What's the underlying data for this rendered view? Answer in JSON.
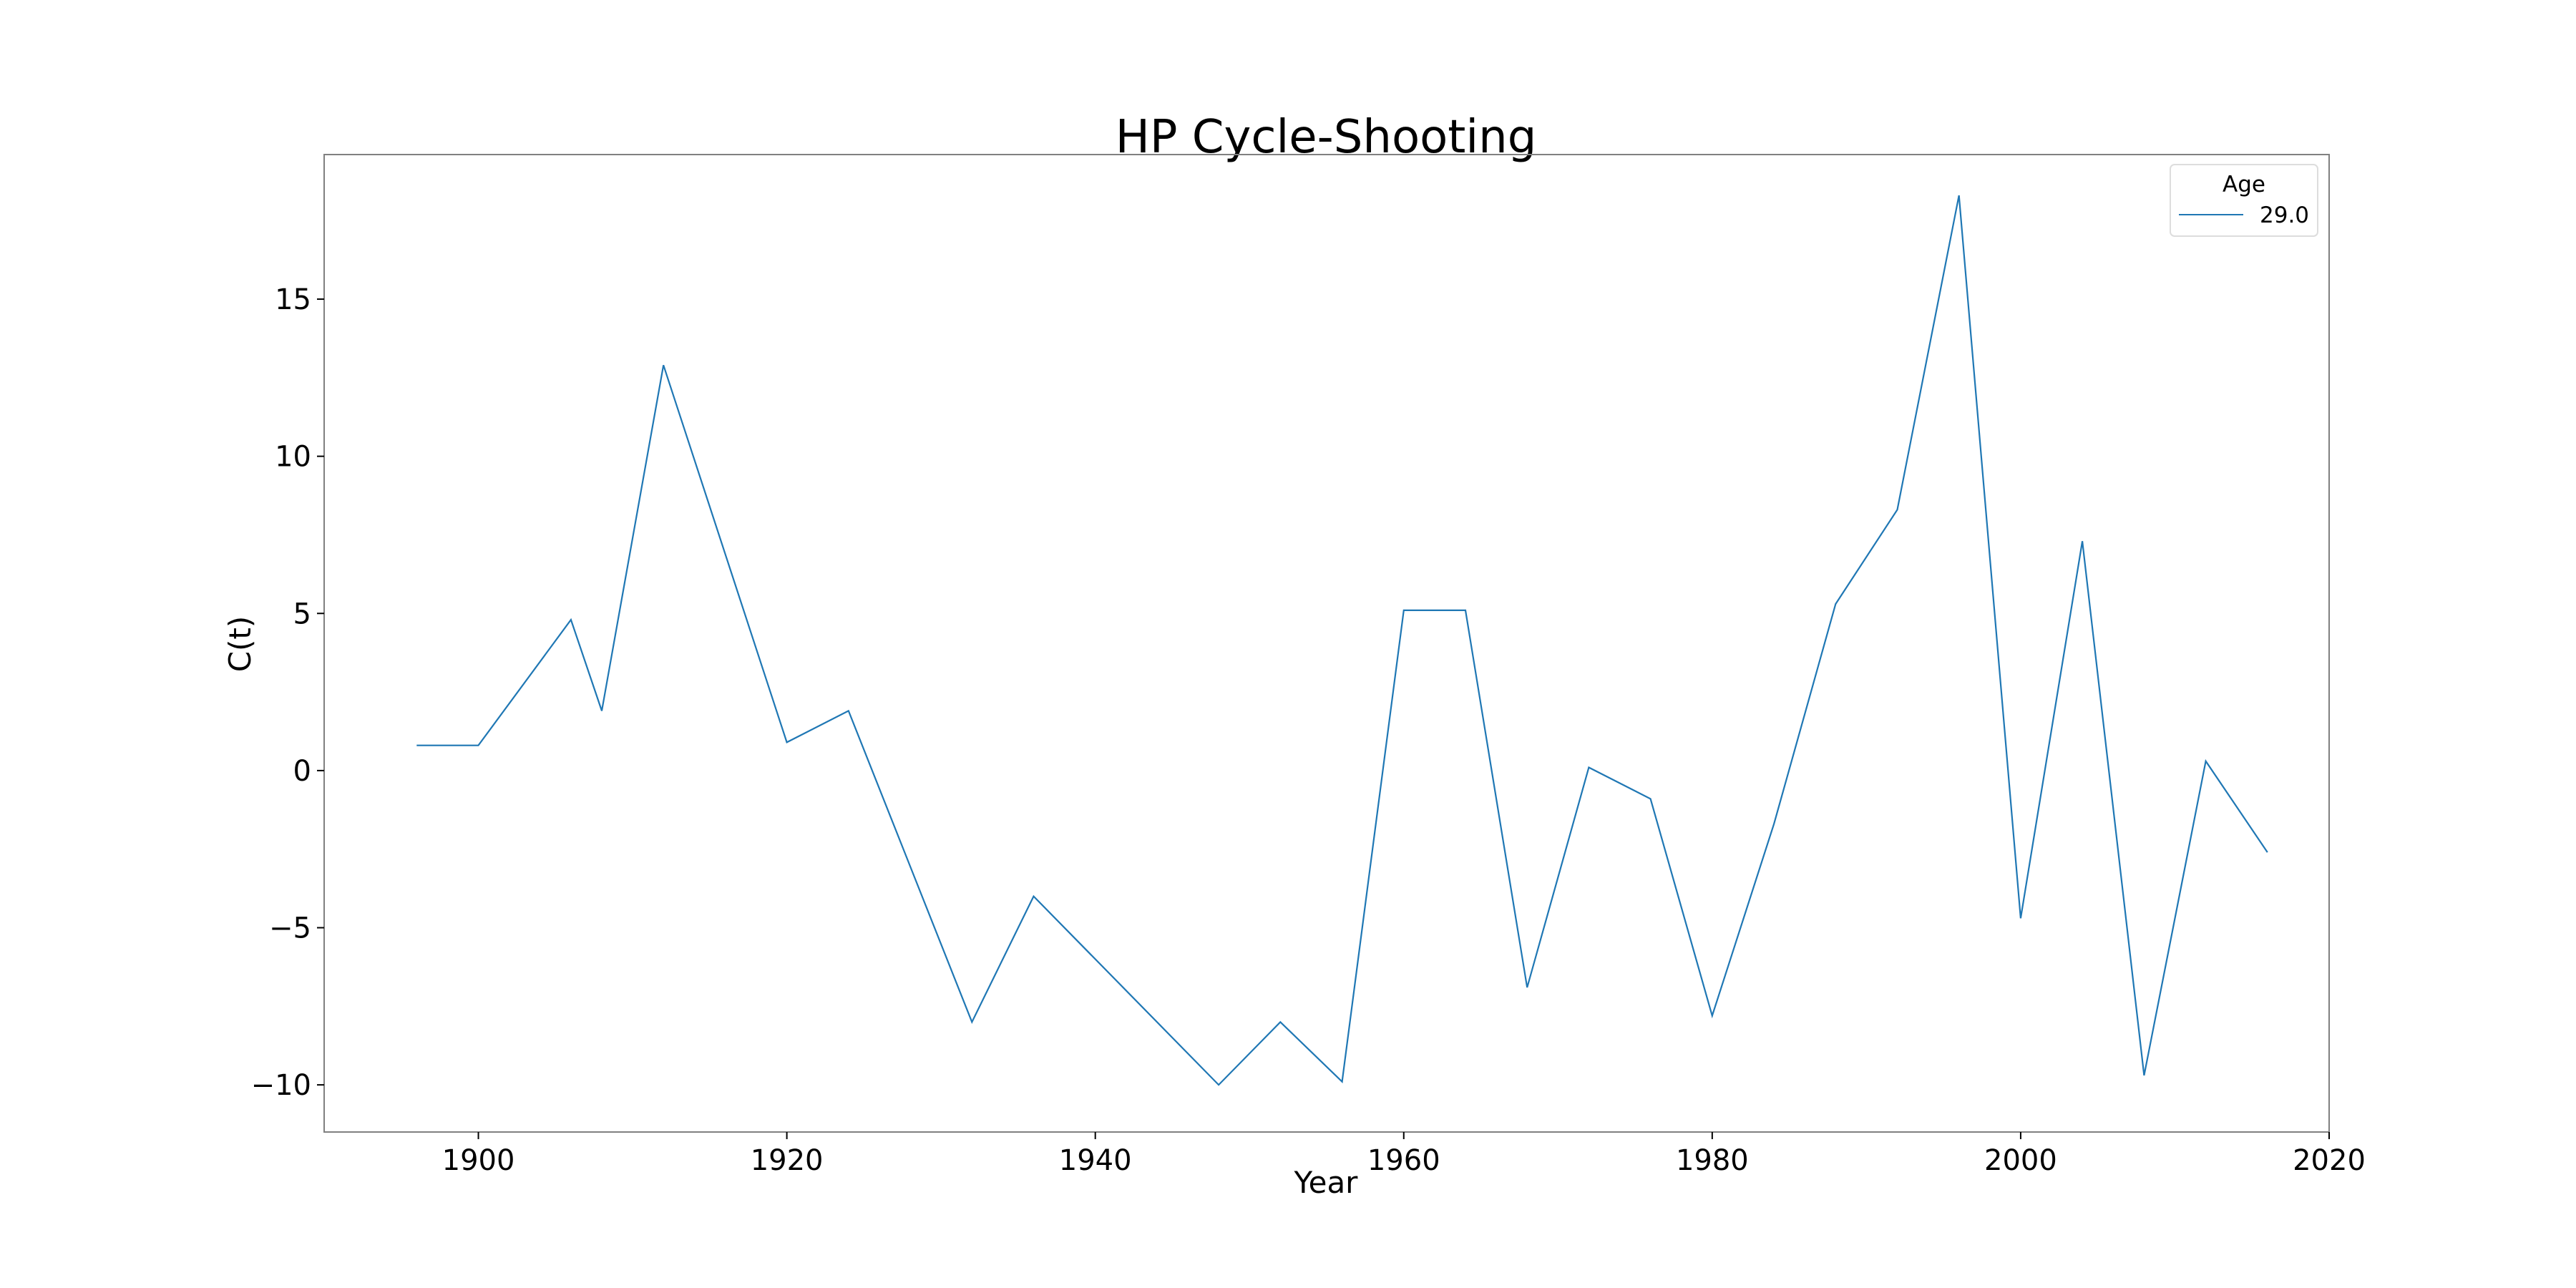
{
  "chart_data": {
    "type": "line",
    "title": "HP Cycle-Shooting",
    "xlabel": "Year",
    "ylabel": "C(t)",
    "xlim": [
      1890,
      2020
    ],
    "ylim": [
      -11.5,
      19.6
    ],
    "xticks": [
      1900,
      1920,
      1940,
      1960,
      1980,
      2000,
      2020
    ],
    "yticks": [
      15,
      10,
      5,
      0,
      -5,
      -10
    ],
    "ytick_labels": [
      "15",
      "10",
      "5",
      "0",
      "−5",
      "−10"
    ],
    "grid": false,
    "legend": {
      "title": "Age",
      "placement": "top-right"
    },
    "colors": {
      "line": "#1f77b4",
      "frame": "#808080",
      "legend_border": "#dddddd"
    },
    "series": [
      {
        "name": "29.0",
        "x": [
          1896,
          1900,
          1906,
          1908,
          1912,
          1920,
          1924,
          1932,
          1936,
          1948,
          1952,
          1956,
          1960,
          1964,
          1968,
          1972,
          1976,
          1980,
          1984,
          1988,
          1992,
          1996,
          2000,
          2004,
          2008,
          2012,
          2016
        ],
        "y": [
          0.8,
          0.8,
          4.8,
          1.9,
          12.9,
          0.9,
          1.9,
          -8.0,
          -4.0,
          -10.0,
          -8.0,
          -9.9,
          5.1,
          5.1,
          -6.9,
          0.1,
          -0.9,
          -7.8,
          -1.7,
          5.3,
          8.3,
          18.3,
          -4.7,
          7.3,
          -9.7,
          0.3,
          -2.6
        ]
      }
    ]
  }
}
